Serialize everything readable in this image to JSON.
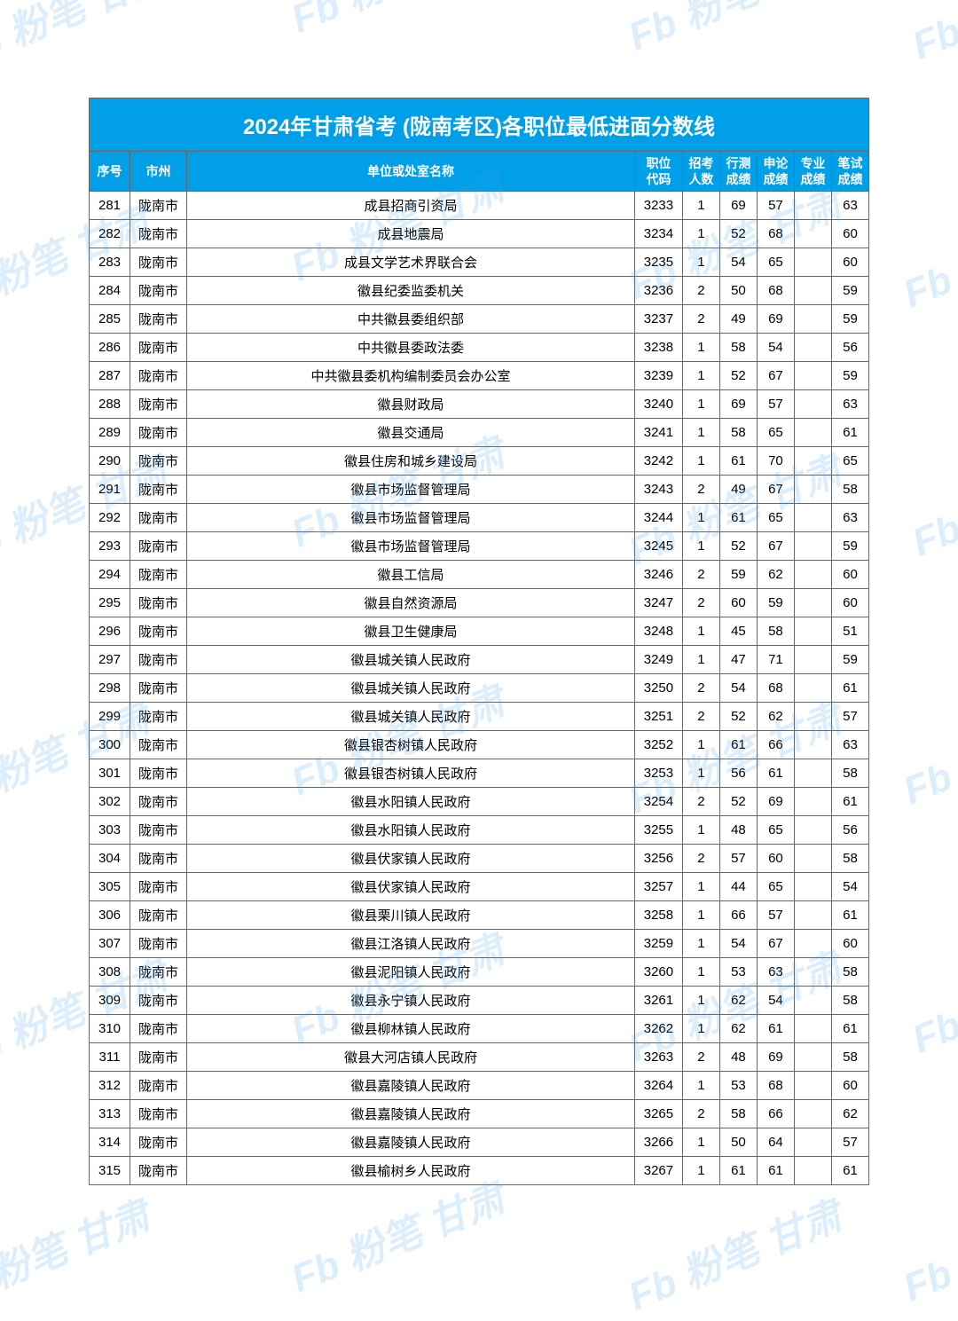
{
  "title": "2024年甘肃省考 (陇南考区)各职位最低进面分数线",
  "columns": [
    "序号",
    "市州",
    "单位或处室名称",
    "职位代码",
    "招考人数",
    "行测成绩",
    "申论成绩",
    "专业成绩",
    "笔试成绩"
  ],
  "column_breaks": {
    "3": "职位<br>代码",
    "4": "招考<br>人数",
    "5": "行测<br>成绩",
    "6": "申论<br>成绩",
    "7": "专业<br>成绩",
    "8": "笔试<br>成绩"
  },
  "watermark_text": "Fb 粉笔 甘肃",
  "colors": {
    "header_bg": "#009fe8",
    "header_text": "#ffffff",
    "border": "#666666",
    "text": "#000000",
    "watermark": "rgba(62,158,235,0.18)"
  },
  "rows": [
    [
      "281",
      "陇南市",
      "成县招商引资局",
      "3233",
      "1",
      "69",
      "57",
      "",
      "63"
    ],
    [
      "282",
      "陇南市",
      "成县地震局",
      "3234",
      "1",
      "52",
      "68",
      "",
      "60"
    ],
    [
      "283",
      "陇南市",
      "成县文学艺术界联合会",
      "3235",
      "1",
      "54",
      "65",
      "",
      "60"
    ],
    [
      "284",
      "陇南市",
      "徽县纪委监委机关",
      "3236",
      "2",
      "50",
      "68",
      "",
      "59"
    ],
    [
      "285",
      "陇南市",
      "中共徽县委组织部",
      "3237",
      "2",
      "49",
      "69",
      "",
      "59"
    ],
    [
      "286",
      "陇南市",
      "中共徽县委政法委",
      "3238",
      "1",
      "58",
      "54",
      "",
      "56"
    ],
    [
      "287",
      "陇南市",
      "中共徽县委机构编制委员会办公室",
      "3239",
      "1",
      "52",
      "67",
      "",
      "59"
    ],
    [
      "288",
      "陇南市",
      "徽县财政局",
      "3240",
      "1",
      "69",
      "57",
      "",
      "63"
    ],
    [
      "289",
      "陇南市",
      "徽县交通局",
      "3241",
      "1",
      "58",
      "65",
      "",
      "61"
    ],
    [
      "290",
      "陇南市",
      "徽县住房和城乡建设局",
      "3242",
      "1",
      "61",
      "70",
      "",
      "65"
    ],
    [
      "291",
      "陇南市",
      "徽县市场监督管理局",
      "3243",
      "2",
      "49",
      "67",
      "",
      "58"
    ],
    [
      "292",
      "陇南市",
      "徽县市场监督管理局",
      "3244",
      "1",
      "61",
      "65",
      "",
      "63"
    ],
    [
      "293",
      "陇南市",
      "徽县市场监督管理局",
      "3245",
      "1",
      "52",
      "67",
      "",
      "59"
    ],
    [
      "294",
      "陇南市",
      "徽县工信局",
      "3246",
      "2",
      "59",
      "62",
      "",
      "60"
    ],
    [
      "295",
      "陇南市",
      "徽县自然资源局",
      "3247",
      "2",
      "60",
      "59",
      "",
      "60"
    ],
    [
      "296",
      "陇南市",
      "徽县卫生健康局",
      "3248",
      "1",
      "45",
      "58",
      "",
      "51"
    ],
    [
      "297",
      "陇南市",
      "徽县城关镇人民政府",
      "3249",
      "1",
      "47",
      "71",
      "",
      "59"
    ],
    [
      "298",
      "陇南市",
      "徽县城关镇人民政府",
      "3250",
      "2",
      "54",
      "68",
      "",
      "61"
    ],
    [
      "299",
      "陇南市",
      "徽县城关镇人民政府",
      "3251",
      "2",
      "52",
      "62",
      "",
      "57"
    ],
    [
      "300",
      "陇南市",
      "徽县银杏树镇人民政府",
      "3252",
      "1",
      "61",
      "66",
      "",
      "63"
    ],
    [
      "301",
      "陇南市",
      "徽县银杏树镇人民政府",
      "3253",
      "1",
      "56",
      "61",
      "",
      "58"
    ],
    [
      "302",
      "陇南市",
      "徽县水阳镇人民政府",
      "3254",
      "2",
      "52",
      "69",
      "",
      "61"
    ],
    [
      "303",
      "陇南市",
      "徽县水阳镇人民政府",
      "3255",
      "1",
      "48",
      "65",
      "",
      "56"
    ],
    [
      "304",
      "陇南市",
      "徽县伏家镇人民政府",
      "3256",
      "2",
      "57",
      "60",
      "",
      "58"
    ],
    [
      "305",
      "陇南市",
      "徽县伏家镇人民政府",
      "3257",
      "1",
      "44",
      "65",
      "",
      "54"
    ],
    [
      "306",
      "陇南市",
      "徽县栗川镇人民政府",
      "3258",
      "1",
      "66",
      "57",
      "",
      "61"
    ],
    [
      "307",
      "陇南市",
      "徽县江洛镇人民政府",
      "3259",
      "1",
      "54",
      "67",
      "",
      "60"
    ],
    [
      "308",
      "陇南市",
      "徽县泥阳镇人民政府",
      "3260",
      "1",
      "53",
      "63",
      "",
      "58"
    ],
    [
      "309",
      "陇南市",
      "徽县永宁镇人民政府",
      "3261",
      "1",
      "62",
      "54",
      "",
      "58"
    ],
    [
      "310",
      "陇南市",
      "徽县柳林镇人民政府",
      "3262",
      "1",
      "62",
      "61",
      "",
      "61"
    ],
    [
      "311",
      "陇南市",
      "徽县大河店镇人民政府",
      "3263",
      "2",
      "48",
      "69",
      "",
      "58"
    ],
    [
      "312",
      "陇南市",
      "徽县嘉陵镇人民政府",
      "3264",
      "1",
      "53",
      "68",
      "",
      "60"
    ],
    [
      "313",
      "陇南市",
      "徽县嘉陵镇人民政府",
      "3265",
      "2",
      "58",
      "66",
      "",
      "62"
    ],
    [
      "314",
      "陇南市",
      "徽县嘉陵镇人民政府",
      "3266",
      "1",
      "50",
      "64",
      "",
      "57"
    ],
    [
      "315",
      "陇南市",
      "徽县榆树乡人民政府",
      "3267",
      "1",
      "61",
      "61",
      "",
      "61"
    ]
  ]
}
